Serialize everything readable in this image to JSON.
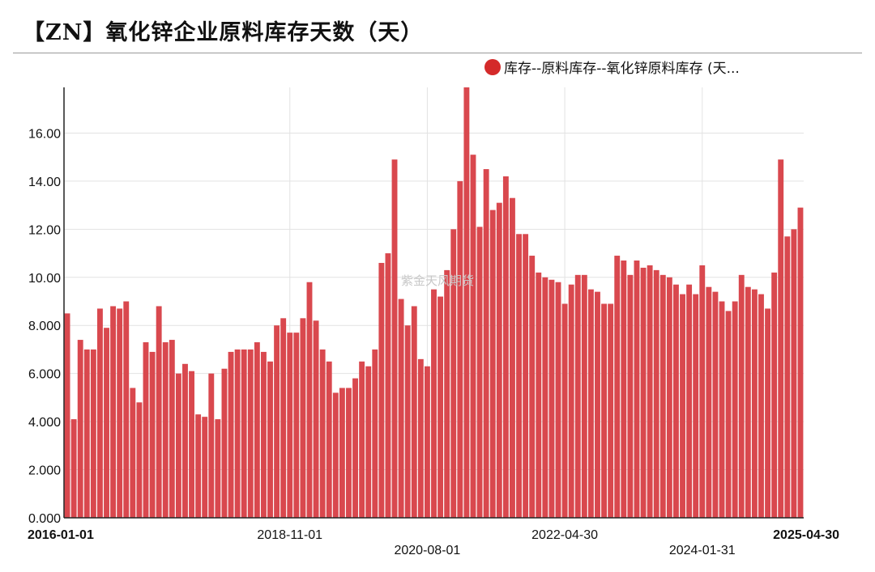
{
  "title": "【ZN】氧化锌企业原料库存天数（天）",
  "watermark": "紫金天风期货",
  "chart_data": {
    "type": "bar",
    "series": [
      {
        "name": "库存--原料库存--氧化锌原料库存 (天...",
        "color": "#d9484e",
        "values": [
          8.5,
          4.1,
          7.4,
          7.0,
          7.0,
          8.7,
          7.9,
          8.8,
          8.7,
          9.0,
          5.4,
          4.8,
          7.3,
          6.9,
          8.8,
          7.3,
          7.4,
          6.0,
          6.4,
          6.1,
          4.3,
          4.2,
          6.0,
          4.1,
          6.2,
          6.9,
          7.0,
          7.0,
          7.0,
          7.3,
          6.9,
          6.5,
          8.0,
          8.3,
          7.7,
          7.7,
          8.3,
          9.8,
          8.2,
          7.0,
          6.5,
          5.2,
          5.4,
          5.4,
          5.8,
          6.5,
          6.3,
          7.0,
          10.6,
          11.0,
          14.9,
          9.1,
          8.0,
          8.8,
          6.6,
          6.3,
          9.5,
          9.2,
          10.3,
          12.0,
          14.0,
          17.9,
          15.1,
          12.1,
          14.5,
          12.8,
          13.1,
          14.2,
          13.3,
          11.8,
          11.8,
          10.9,
          10.2,
          10.0,
          9.9,
          9.8,
          8.9,
          9.7,
          10.1,
          10.1,
          9.5,
          9.4,
          8.9,
          8.9,
          10.9,
          10.7,
          10.1,
          10.7,
          10.4,
          10.5,
          10.3,
          10.1,
          10.0,
          9.7,
          9.3,
          9.7,
          9.3,
          10.5,
          9.6,
          9.4,
          9.0,
          8.6,
          9.0,
          10.1,
          9.6,
          9.5,
          9.3,
          8.7,
          10.2,
          14.9,
          11.7,
          12.0,
          12.9
        ]
      }
    ],
    "ylim": [
      0,
      17.9
    ],
    "yticks": [
      "0.000",
      "2.000",
      "4.000",
      "6.000",
      "8.000",
      "10.00",
      "12.00",
      "14.00",
      "16.00"
    ],
    "yticks_values": [
      0,
      2,
      4,
      6,
      8,
      10,
      12,
      14,
      16
    ],
    "xticks": [
      {
        "label": "2016-01-01",
        "index": 0,
        "row": 0,
        "bold": true
      },
      {
        "label": "2018-11-01",
        "index": 34,
        "row": 0,
        "bold": false
      },
      {
        "label": "2020-08-01",
        "index": 55,
        "row": 1,
        "bold": false
      },
      {
        "label": "2022-04-30",
        "index": 76,
        "row": 0,
        "bold": false
      },
      {
        "label": "2024-01-31",
        "index": 97,
        "row": 1,
        "bold": false
      },
      {
        "label": "2025-04-30",
        "index": 112,
        "row": 0,
        "bold": true
      }
    ],
    "grid": true,
    "legend_position": "top-right"
  }
}
